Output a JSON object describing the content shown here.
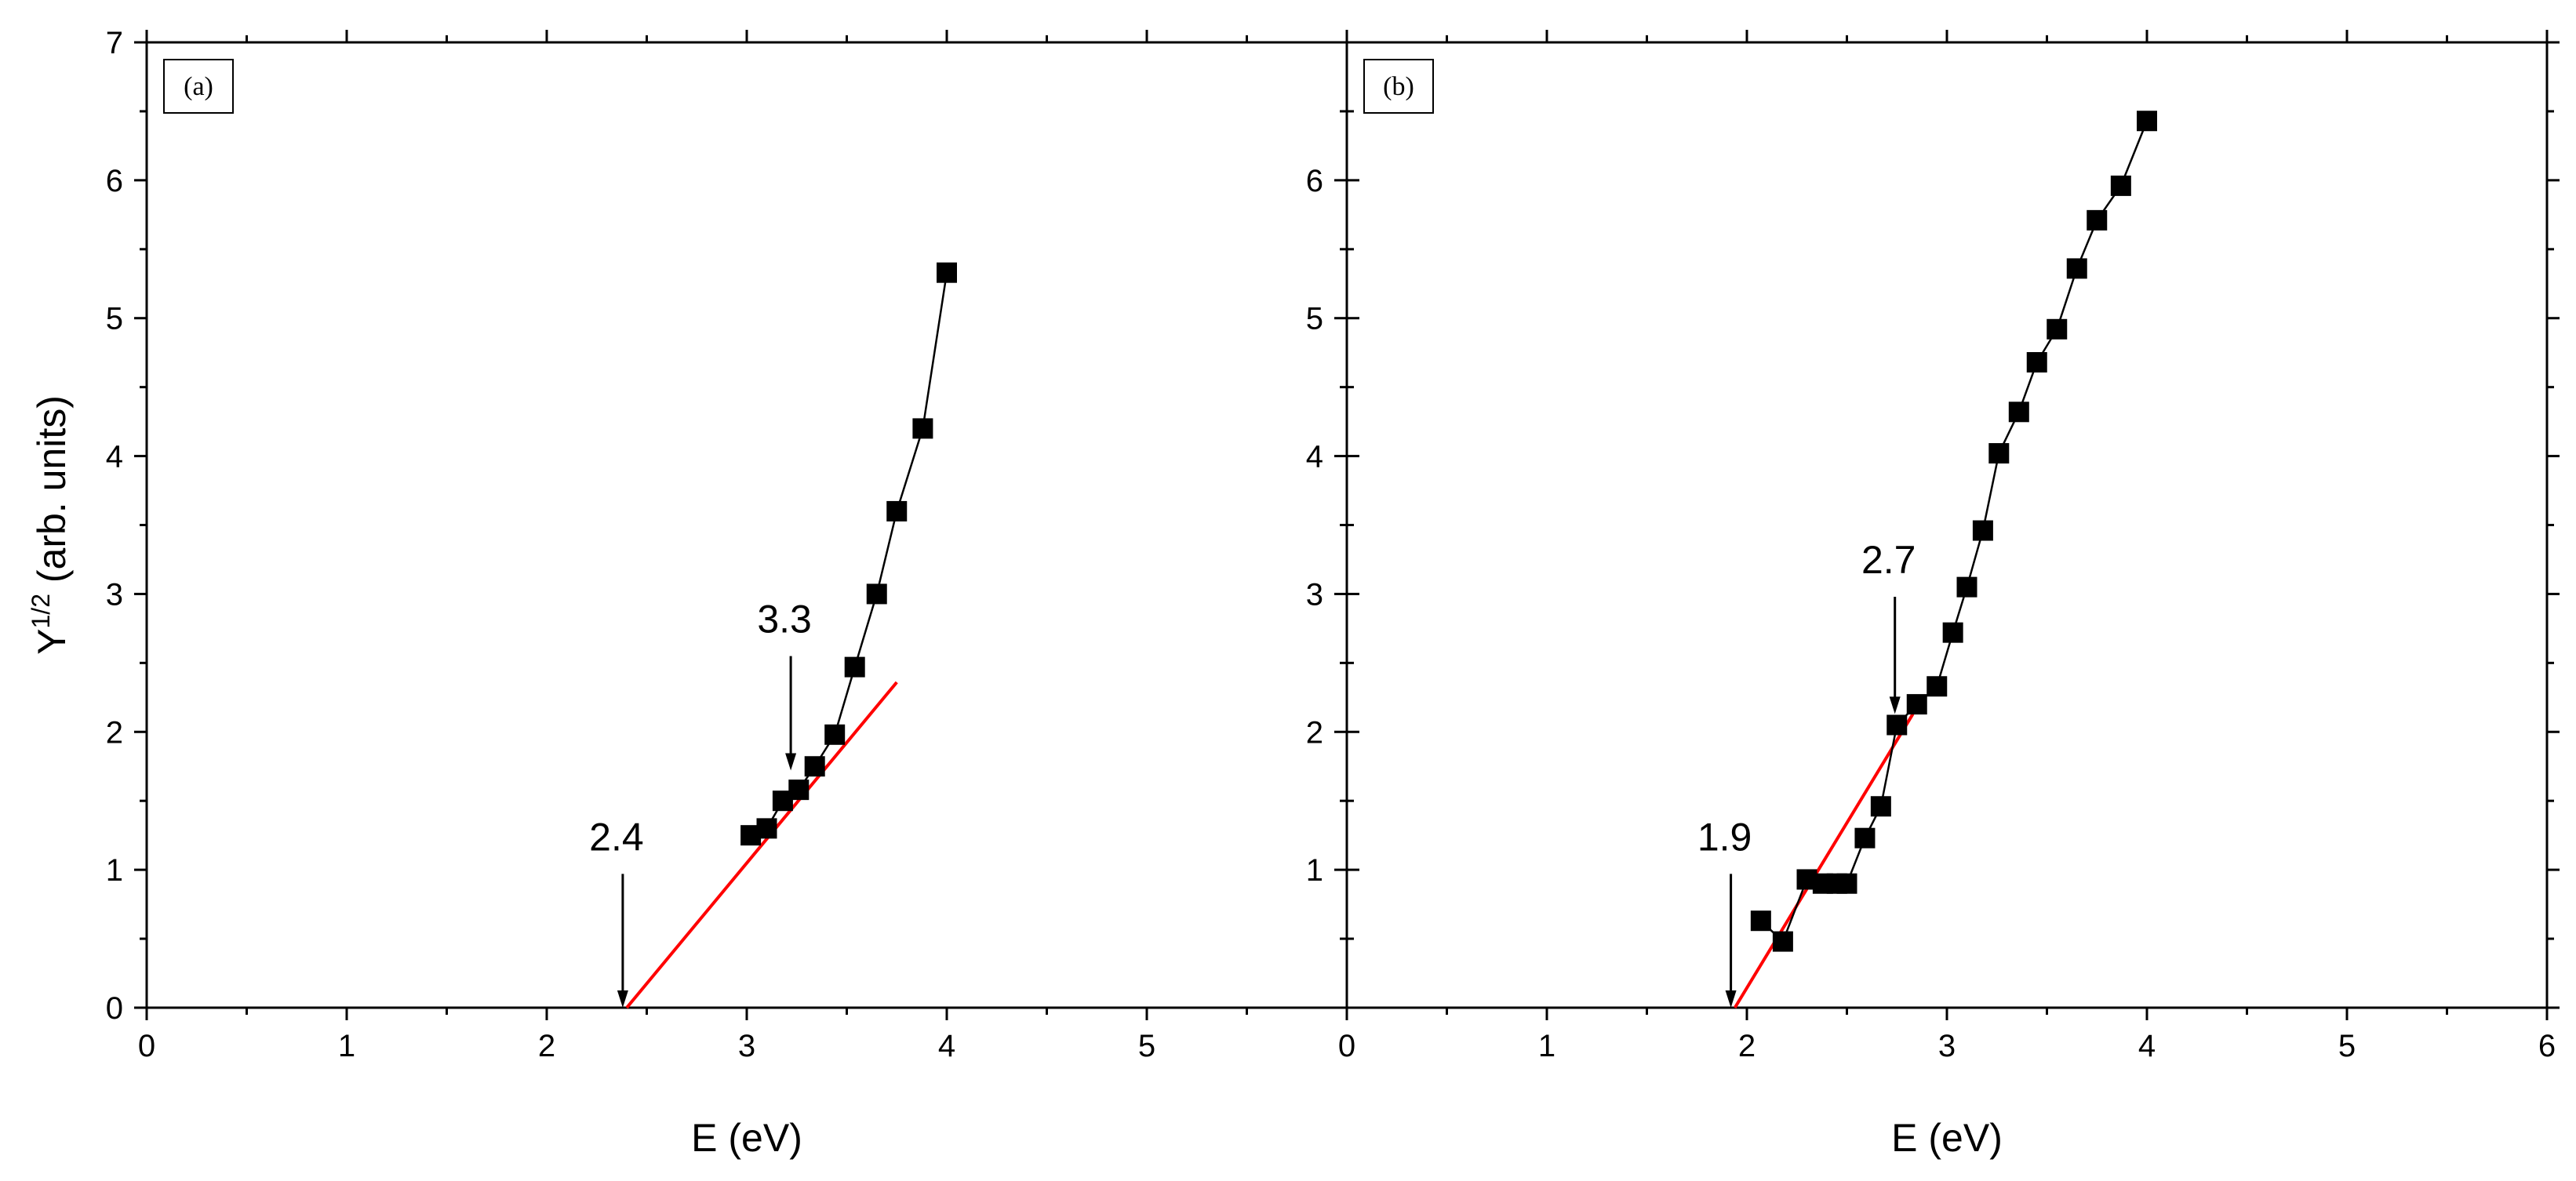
{
  "chart_data": [
    {
      "type": "scatter",
      "panel_label": "(a)",
      "xlabel": "E (eV)",
      "ylabel_base": "Y",
      "ylabel_sup": "1/2",
      "ylabel_rest": " (arb. units)",
      "xlim": [
        0,
        6
      ],
      "ylim": [
        0,
        7
      ],
      "x_ticks": [
        0,
        1,
        2,
        3,
        4,
        5
      ],
      "y_ticks": [
        0,
        1,
        2,
        3,
        4,
        5,
        6,
        7
      ],
      "series": [
        {
          "marker": "square",
          "connected": true,
          "color": "#000000",
          "x": [
            3.02,
            3.1,
            3.18,
            3.26,
            3.34,
            3.44,
            3.54,
            3.65,
            3.75,
            3.88,
            4.0
          ],
          "y": [
            1.25,
            1.3,
            1.5,
            1.58,
            1.75,
            1.98,
            2.47,
            3.0,
            3.6,
            4.2,
            5.33
          ]
        }
      ],
      "fit_line": {
        "color": "#ff0000",
        "x": [
          2.4,
          3.75
        ],
        "y": [
          0.0,
          2.36
        ]
      },
      "annotations": [
        {
          "text": "2.4",
          "x": 2.38,
          "y_from": 0.97,
          "y_to": 0.0
        },
        {
          "text": "3.3",
          "x": 3.22,
          "y_from": 2.55,
          "y_to": 1.72
        }
      ]
    },
    {
      "type": "scatter",
      "panel_label": "(b)",
      "xlabel": "E (eV)",
      "xlim": [
        0,
        6
      ],
      "ylim": [
        0,
        7
      ],
      "x_ticks": [
        0,
        1,
        2,
        3,
        4,
        5,
        6
      ],
      "y_ticks": [
        1,
        2,
        3,
        4,
        5,
        6
      ],
      "series": [
        {
          "marker": "square",
          "connected": true,
          "color": "#000000",
          "x": [
            2.07,
            2.18,
            2.3,
            2.38,
            2.45,
            2.5,
            2.59,
            2.67,
            2.75,
            2.85,
            2.95,
            3.03,
            3.1,
            3.18,
            3.26,
            3.36,
            3.45,
            3.55,
            3.65,
            3.75,
            3.87,
            4.0
          ],
          "y": [
            0.63,
            0.48,
            0.93,
            0.9,
            0.9,
            0.9,
            1.23,
            1.46,
            2.05,
            2.2,
            2.33,
            2.72,
            3.05,
            3.46,
            4.02,
            4.32,
            4.68,
            4.92,
            5.36,
            5.71,
            5.96,
            6.43
          ]
        }
      ],
      "fit_line": {
        "color": "#ff0000",
        "x": [
          1.94,
          2.83
        ],
        "y": [
          0.0,
          2.13
        ]
      },
      "annotations": [
        {
          "text": "1.9",
          "x": 1.92,
          "y_from": 0.97,
          "y_to": 0.0
        },
        {
          "text": "2.7",
          "x": 2.74,
          "y_from": 2.98,
          "y_to": 2.13
        }
      ]
    }
  ]
}
